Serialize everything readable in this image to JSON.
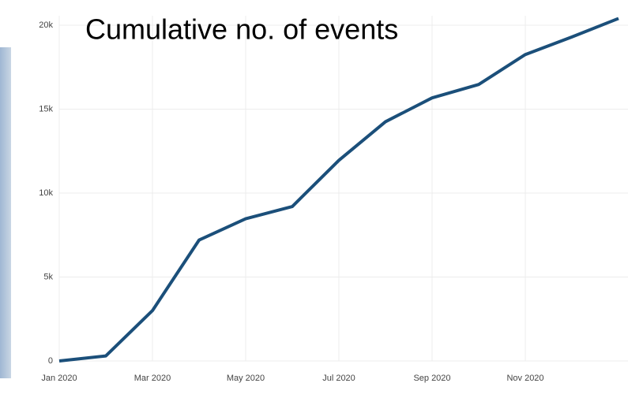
{
  "chart_data": {
    "type": "line",
    "title": "Cumulative no. of events",
    "x": [
      "2020-01",
      "2020-02",
      "2020-03",
      "2020-04",
      "2020-05",
      "2020-06",
      "2020-07",
      "2020-08",
      "2020-09",
      "2020-10",
      "2020-11",
      "2020-12",
      "2021-01"
    ],
    "series": [
      {
        "name": "events",
        "color": "#1b4f7a",
        "values": [
          0,
          300,
          3000,
          7200,
          8470,
          9200,
          11950,
          14250,
          15670,
          16470,
          18250,
          19300,
          20400
        ]
      }
    ],
    "xlim": [
      "2020-01",
      "2021-01"
    ],
    "xticks": [
      {
        "value": "2020-01",
        "label": "Jan 2020"
      },
      {
        "value": "2020-03",
        "label": "Mar 2020"
      },
      {
        "value": "2020-05",
        "label": "May 2020"
      },
      {
        "value": "2020-07",
        "label": "Jul 2020"
      },
      {
        "value": "2020-09",
        "label": "Sep 2020"
      },
      {
        "value": "2020-11",
        "label": "Nov 2020"
      }
    ],
    "ylim": [
      0,
      21500
    ],
    "yticks": [
      0,
      {
        "value": 5000,
        "label": "5k"
      },
      {
        "value": 10000,
        "label": "10k"
      },
      {
        "value": 15000,
        "label": "15k"
      },
      {
        "value": 20000,
        "label": "20k"
      }
    ],
    "grid": true
  }
}
